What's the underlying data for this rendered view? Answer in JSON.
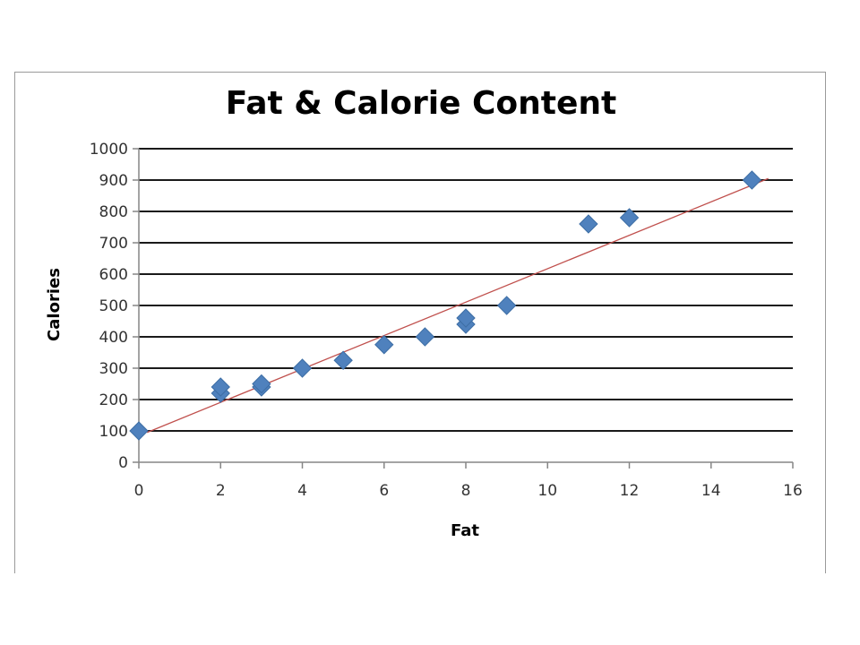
{
  "chart_data": {
    "type": "scatter",
    "title": "Fat & Calorie Content",
    "xlabel": "Fat",
    "ylabel": "Calories",
    "xlim": [
      0,
      16
    ],
    "ylim": [
      0,
      1000
    ],
    "xticks": [
      0,
      2,
      4,
      6,
      8,
      10,
      12,
      14,
      16
    ],
    "yticks": [
      0,
      100,
      200,
      300,
      400,
      500,
      600,
      700,
      800,
      900,
      1000
    ],
    "grid": "horizontal",
    "legend": "none",
    "series": [
      {
        "marker": "diamond",
        "color": "#4f81bd",
        "points": [
          {
            "x": 0,
            "y": 100
          },
          {
            "x": 2,
            "y": 220
          },
          {
            "x": 2,
            "y": 240
          },
          {
            "x": 3,
            "y": 240
          },
          {
            "x": 3,
            "y": 250
          },
          {
            "x": 4,
            "y": 300
          },
          {
            "x": 5,
            "y": 325
          },
          {
            "x": 6,
            "y": 375
          },
          {
            "x": 7,
            "y": 400
          },
          {
            "x": 8,
            "y": 440
          },
          {
            "x": 8,
            "y": 460
          },
          {
            "x": 9,
            "y": 500
          },
          {
            "x": 11,
            "y": 760
          },
          {
            "x": 12,
            "y": 780
          },
          {
            "x": 15,
            "y": 900
          }
        ]
      }
    ],
    "trendline": {
      "type": "linear",
      "color": "#c0504d",
      "x": [
        0.2,
        15.4
      ],
      "y": [
        95,
        905
      ]
    }
  }
}
